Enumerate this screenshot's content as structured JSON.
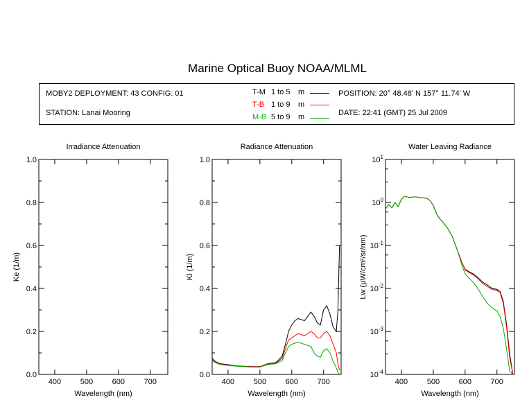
{
  "header": {
    "title": "Marine Optical Buoy NOAA/MLML",
    "deployment": "MOBY2 DEPLOYMENT: 43 CONFIG: 01",
    "station": "STATION: Lanai Mooring",
    "position": "POSITION: 20° 48.48' N   157° 11.74' W",
    "date": "DATE: 22:41 (GMT) 25 Jul 2009",
    "legend": [
      {
        "code": "T-M",
        "range": "1 to 5",
        "unit": "m",
        "color": "#000000"
      },
      {
        "code": "T-B",
        "range": "1 to 9",
        "unit": "m",
        "color": "#ff0000"
      },
      {
        "code": "M-B",
        "range": "5 to 9",
        "unit": "m",
        "color": "#00aa00"
      }
    ]
  },
  "chart_data": [
    {
      "type": "line",
      "title": "Irradiance Attenuation",
      "xlabel": "Wavelength (nm)",
      "ylabel": "Ke  (1/m)",
      "xlim": [
        350,
        755
      ],
      "ylim": [
        0,
        1
      ],
      "xticks": [
        400,
        500,
        600,
        700
      ],
      "yticks": [
        "0.0",
        "0.2",
        "0.4",
        "0.6",
        "0.8",
        "1.0"
      ],
      "series": []
    },
    {
      "type": "line",
      "title": "Radiance Attenuation",
      "xlabel": "Wavelength (nm)",
      "ylabel": "Kl  (1/m)",
      "xlim": [
        350,
        755
      ],
      "ylim": [
        0,
        1
      ],
      "xticks": [
        400,
        500,
        600,
        700
      ],
      "yticks": [
        "0.0",
        "0.2",
        "0.4",
        "0.6",
        "0.8",
        "1.0"
      ],
      "series": [
        {
          "color": "#000000",
          "x": [
            350,
            360,
            375,
            400,
            425,
            450,
            475,
            500,
            525,
            550,
            570,
            580,
            590,
            600,
            610,
            620,
            640,
            660,
            670,
            680,
            690,
            700,
            710,
            720,
            730,
            740,
            745,
            750
          ],
          "y": [
            0.075,
            0.06,
            0.05,
            0.045,
            0.04,
            0.038,
            0.036,
            0.036,
            0.05,
            0.055,
            0.085,
            0.14,
            0.2,
            0.23,
            0.25,
            0.26,
            0.25,
            0.29,
            0.27,
            0.24,
            0.23,
            0.3,
            0.32,
            0.28,
            0.22,
            0.2,
            0.3,
            0.6
          ]
        },
        {
          "color": "#ff0000",
          "x": [
            350,
            360,
            375,
            400,
            425,
            450,
            475,
            500,
            525,
            550,
            570,
            580,
            590,
            600,
            610,
            620,
            640,
            660,
            670,
            680,
            690,
            700,
            710,
            720,
            730,
            740,
            745,
            750
          ],
          "y": [
            0.07,
            0.058,
            0.048,
            0.043,
            0.039,
            0.037,
            0.035,
            0.035,
            0.048,
            0.052,
            0.075,
            0.12,
            0.16,
            0.17,
            0.18,
            0.19,
            0.18,
            0.2,
            0.19,
            0.17,
            0.17,
            0.19,
            0.2,
            0.18,
            0.14,
            0.1,
            0.05,
            0.02
          ]
        },
        {
          "color": "#00aa00",
          "x": [
            350,
            360,
            375,
            400,
            425,
            450,
            475,
            500,
            525,
            550,
            570,
            580,
            590,
            600,
            610,
            620,
            640,
            660,
            670,
            680,
            690,
            700,
            710,
            720,
            730,
            740,
            745,
            750
          ],
          "y": [
            0.065,
            0.055,
            0.046,
            0.042,
            0.038,
            0.036,
            0.034,
            0.034,
            0.046,
            0.05,
            0.065,
            0.1,
            0.13,
            0.14,
            0.145,
            0.15,
            0.14,
            0.13,
            0.1,
            0.085,
            0.08,
            0.11,
            0.12,
            0.1,
            0.06,
            0.03,
            0.01,
            0.0
          ]
        }
      ]
    },
    {
      "type": "line",
      "title": "Water Leaving Radiance",
      "xlabel": "Wavelength (nm)",
      "ylabel": "Lw  (μW/cm²/sr/nm)",
      "xlim": [
        350,
        755
      ],
      "ylim": [
        0.0001,
        10
      ],
      "yscale": "log",
      "xticks": [
        400,
        500,
        600,
        700
      ],
      "yticks": [
        {
          "base": "10",
          "exp": "1"
        },
        {
          "base": "10",
          "exp": "0"
        },
        {
          "base": "10",
          "exp": "-1"
        },
        {
          "base": "10",
          "exp": "-2"
        },
        {
          "base": "10",
          "exp": "-3"
        },
        {
          "base": "10",
          "exp": "-4"
        }
      ],
      "series": [
        {
          "color": "#000000",
          "x": [
            350,
            360,
            370,
            380,
            390,
            400,
            410,
            425,
            440,
            460,
            480,
            490,
            500,
            510,
            520,
            530,
            545,
            560,
            575,
            590,
            600,
            610,
            625,
            640,
            655,
            670,
            685,
            700,
            710,
            720,
            730,
            740,
            750
          ],
          "y": [
            0.7,
            0.9,
            0.75,
            1.0,
            0.8,
            1.2,
            1.4,
            1.3,
            1.35,
            1.3,
            1.25,
            1.1,
            0.85,
            0.55,
            0.42,
            0.35,
            0.25,
            0.16,
            0.08,
            0.04,
            0.028,
            0.025,
            0.022,
            0.018,
            0.014,
            0.012,
            0.01,
            0.0095,
            0.0085,
            0.005,
            0.0015,
            0.0003,
            0.0001
          ]
        },
        {
          "color": "#ff0000",
          "x": [
            350,
            360,
            370,
            380,
            390,
            400,
            410,
            425,
            440,
            460,
            480,
            490,
            500,
            510,
            520,
            530,
            545,
            560,
            575,
            590,
            600,
            610,
            625,
            640,
            655,
            670,
            685,
            700,
            710,
            720,
            730,
            740,
            750
          ],
          "y": [
            0.7,
            0.9,
            0.75,
            1.0,
            0.8,
            1.2,
            1.4,
            1.3,
            1.35,
            1.3,
            1.25,
            1.1,
            0.85,
            0.55,
            0.42,
            0.35,
            0.25,
            0.16,
            0.08,
            0.04,
            0.027,
            0.024,
            0.021,
            0.017,
            0.013,
            0.011,
            0.0095,
            0.009,
            0.008,
            0.0045,
            0.0013,
            0.00025,
            0.0001
          ]
        },
        {
          "color": "#00aa00",
          "x": [
            350,
            360,
            370,
            380,
            390,
            400,
            410,
            425,
            440,
            460,
            480,
            490,
            500,
            510,
            520,
            530,
            545,
            560,
            575,
            590,
            600,
            610,
            625,
            640,
            655,
            670,
            685,
            700,
            710,
            720,
            730,
            740,
            750
          ],
          "y": [
            0.7,
            0.9,
            0.75,
            1.0,
            0.8,
            1.2,
            1.4,
            1.3,
            1.35,
            1.3,
            1.25,
            1.1,
            0.85,
            0.55,
            0.42,
            0.35,
            0.25,
            0.16,
            0.08,
            0.035,
            0.022,
            0.018,
            0.014,
            0.01,
            0.0065,
            0.0045,
            0.0035,
            0.003,
            0.0022,
            0.0012,
            0.0004,
            0.00012,
            0.0001
          ]
        }
      ]
    }
  ]
}
